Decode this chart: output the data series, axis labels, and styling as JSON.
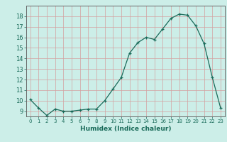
{
  "x": [
    0,
    1,
    2,
    3,
    4,
    5,
    6,
    7,
    8,
    9,
    10,
    11,
    12,
    13,
    14,
    15,
    16,
    17,
    18,
    19,
    20,
    21,
    22,
    23
  ],
  "y": [
    10.1,
    9.3,
    8.6,
    9.2,
    9.0,
    9.0,
    9.1,
    9.2,
    9.2,
    10.0,
    11.1,
    12.2,
    14.5,
    15.5,
    16.0,
    15.8,
    16.8,
    17.8,
    18.2,
    18.1,
    17.1,
    15.4,
    12.2,
    9.3
  ],
  "xlabel": "Humidex (Indice chaleur)",
  "xlim": [
    -0.5,
    23.5
  ],
  "ylim": [
    8.5,
    19.0
  ],
  "yticks": [
    9,
    10,
    11,
    12,
    13,
    14,
    15,
    16,
    17,
    18
  ],
  "xticks": [
    0,
    1,
    2,
    3,
    4,
    5,
    6,
    7,
    8,
    9,
    10,
    11,
    12,
    13,
    14,
    15,
    16,
    17,
    18,
    19,
    20,
    21,
    22,
    23
  ],
  "line_color": "#1a6b5a",
  "marker": "+",
  "bg_color": "#cceee8",
  "grid_color": "#d4a0a0",
  "text_color": "#1a6b5a"
}
